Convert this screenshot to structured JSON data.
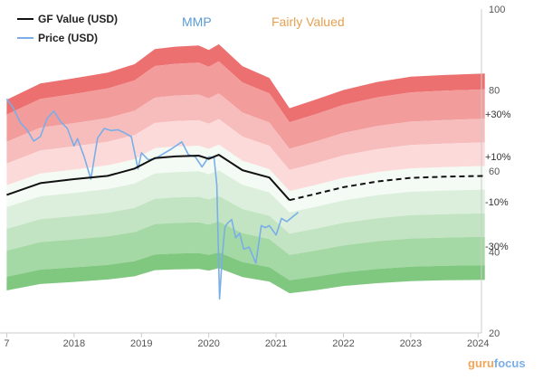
{
  "chart_data": {
    "type": "area",
    "ticker": "MMP",
    "verdict": "Fairly Valued",
    "x_ticks": [
      "7",
      "2018",
      "2019",
      "2020",
      "2021",
      "2022",
      "2023",
      "2024"
    ],
    "y_ticks": [
      20,
      40,
      60,
      80,
      100
    ],
    "ylim": [
      20,
      100
    ],
    "band_labels": [
      "+30%",
      "+10%",
      "-10%",
      "-30%"
    ],
    "legend": [
      {
        "name": "GF Value (USD)",
        "color": "#111111"
      },
      {
        "name": "Price (USD)",
        "color": "#7aaee8"
      }
    ],
    "watermark": {
      "first": "guru",
      "second": "focus"
    },
    "gf_value": {
      "name": "GF Value (USD)",
      "x": [
        2017.0,
        2017.5,
        2018.0,
        2018.5,
        2018.9,
        2019.2,
        2019.5,
        2019.85,
        2020.0,
        2020.15,
        2020.5,
        2020.9,
        2021.2
      ],
      "y": [
        54.1,
        57.0,
        58.0,
        58.8,
        60.6,
        63.2,
        63.6,
        63.8,
        63.0,
        64.0,
        60.2,
        58.4,
        52.8
      ]
    },
    "gf_value_projection": {
      "x": [
        2021.2,
        2021.6,
        2022.0,
        2022.5,
        2023.0,
        2023.5,
        2024.1
      ],
      "y": [
        52.8,
        54.4,
        56.0,
        57.4,
        58.3,
        58.6,
        58.8
      ]
    },
    "bands": {
      "x": [
        2017.0,
        2017.5,
        2018.0,
        2018.5,
        2018.9,
        2019.2,
        2019.5,
        2019.85,
        2020.0,
        2020.15,
        2020.5,
        2020.9,
        2021.2,
        2021.6,
        2022.0,
        2022.5,
        2023.0,
        2023.5,
        2024.1
      ],
      "upper": [
        77.6,
        81.6,
        82.9,
        84.3,
        86.4,
        90.1,
        90.7,
        91.0,
        89.9,
        91.3,
        85.9,
        83.0,
        75.5,
        77.7,
        80.0,
        82.0,
        83.3,
        83.7,
        84.1
      ],
      "lower": [
        30.5,
        32.1,
        32.6,
        33.2,
        34.0,
        35.5,
        35.7,
        35.8,
        35.4,
        36.0,
        33.8,
        32.7,
        29.8,
        30.6,
        31.6,
        32.3,
        32.8,
        33.0,
        33.1
      ],
      "multipliers": [
        1.45,
        1.3,
        1.2,
        1.1,
        1.0,
        0.9,
        0.8,
        0.7,
        0.56
      ],
      "colors": [
        "#ed7070",
        "#f29c9c",
        "#f7bdbd",
        "#fcdada",
        "#f4faf4",
        "#dcefdc",
        "#c2e4c2",
        "#a4d8a4",
        "#80c880"
      ]
    },
    "price": {
      "name": "Price (USD)",
      "x": [
        2017.0,
        2017.1,
        2017.2,
        2017.3,
        2017.4,
        2017.5,
        2017.6,
        2017.7,
        2017.8,
        2017.9,
        2018.0,
        2018.05,
        2018.15,
        2018.25,
        2018.35,
        2018.45,
        2018.55,
        2018.65,
        2018.75,
        2018.85,
        2018.95,
        2019.0,
        2019.1,
        2019.2,
        2019.3,
        2019.45,
        2019.6,
        2019.7,
        2019.8,
        2019.9,
        2020.0,
        2020.08,
        2020.12,
        2020.16,
        2020.2,
        2020.24,
        2020.28,
        2020.34,
        2020.4,
        2020.46,
        2020.52,
        2020.6,
        2020.7,
        2020.78,
        2020.84,
        2020.9,
        2021.0,
        2021.08,
        2021.16,
        2021.24,
        2021.33
      ],
      "y": [
        77.8,
        75.5,
        72.0,
        70.2,
        67.4,
        68.5,
        73.0,
        74.8,
        72.2,
        70.5,
        66.2,
        68.0,
        63.5,
        58.0,
        68.2,
        70.5,
        70.0,
        70.2,
        69.4,
        68.5,
        60.5,
        64.5,
        62.8,
        63.0,
        64.0,
        65.5,
        67.2,
        64.0,
        63.5,
        61.0,
        63.5,
        63.2,
        56.5,
        28.4,
        38.8,
        46.1,
        47.1,
        48.0,
        43.5,
        44.6,
        40.7,
        41.2,
        37.2,
        46.5,
        46.0,
        46.5,
        44.2,
        48.3,
        47.5,
        48.6,
        49.8
      ]
    }
  }
}
